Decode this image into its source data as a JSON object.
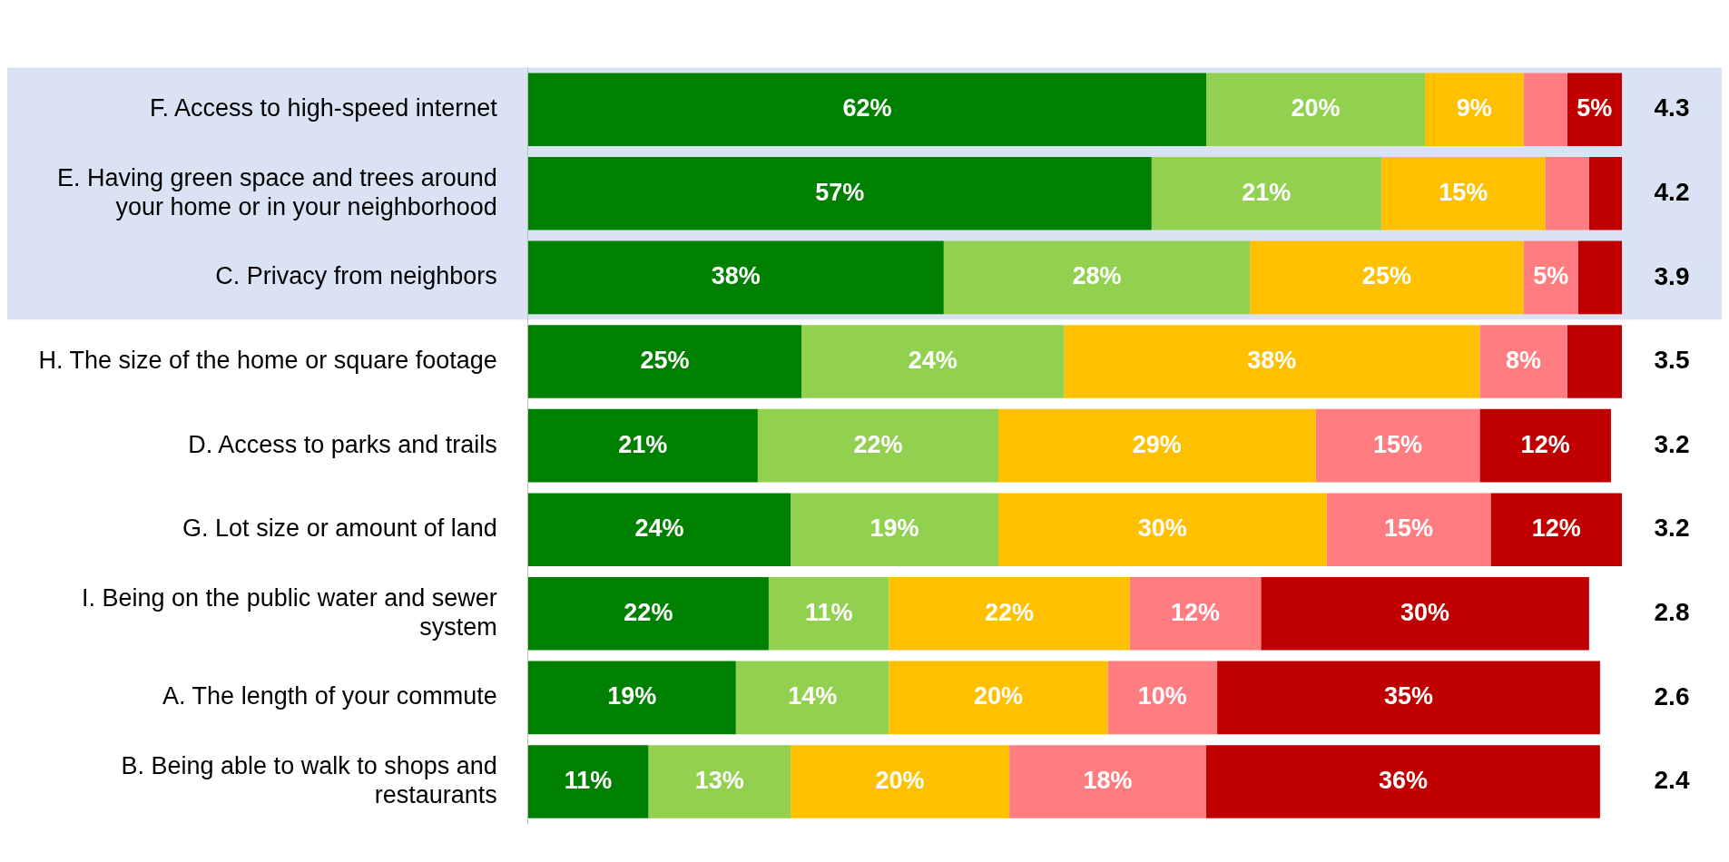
{
  "chart_data": {
    "type": "bar",
    "orientation": "horizontal",
    "stacked": true,
    "categories": [
      "F. Access to high-speed internet",
      "E. Having green space and trees around your home or in your neighborhood",
      "C. Privacy from neighbors",
      "H. The size of the home or square footage",
      "D. Access to parks and trails",
      "G. Lot size or amount of land",
      "I. Being on the public water and sewer system",
      "A. The length of your commute",
      "B. Being able to walk to shops and restaurants"
    ],
    "series": [
      {
        "color": "#008000",
        "values": [
          62,
          57,
          38,
          25,
          21,
          24,
          22,
          19,
          11
        ],
        "value_labels": [
          "62%",
          "57%",
          "38%",
          "25%",
          "21%",
          "24%",
          "22%",
          "19%",
          "11%"
        ]
      },
      {
        "color": "#92d050",
        "values": [
          20,
          21,
          28,
          24,
          22,
          19,
          11,
          14,
          13
        ],
        "value_labels": [
          "20%",
          "21%",
          "28%",
          "24%",
          "22%",
          "19%",
          "11%",
          "14%",
          "13%"
        ]
      },
      {
        "color": "#ffc000",
        "values": [
          9,
          15,
          25,
          38,
          29,
          30,
          22,
          20,
          20
        ],
        "value_labels": [
          "9%",
          "15%",
          "25%",
          "38%",
          "29%",
          "30%",
          "22%",
          "20%",
          "20%"
        ]
      },
      {
        "color": "#ff7c80",
        "values": [
          4,
          4,
          5,
          8,
          15,
          15,
          12,
          10,
          18
        ],
        "value_labels": [
          null,
          null,
          "5%",
          "8%",
          "15%",
          "15%",
          "12%",
          "10%",
          "18%"
        ]
      },
      {
        "color": "#c00000",
        "values": [
          5,
          3,
          4,
          5,
          12,
          12,
          30,
          35,
          36
        ],
        "value_labels": [
          "5%",
          null,
          null,
          null,
          "12%",
          "12%",
          "30%",
          "35%",
          "36%"
        ]
      }
    ],
    "bands": [
      {
        "axis": "y",
        "from": "F. Access to high-speed internet",
        "to": "C. Privacy from neighbors",
        "color": "#dae3f3"
      }
    ],
    "annotations": [
      "4.3",
      "4.2",
      "3.9",
      "3.5",
      "3.2",
      "3.2",
      "2.8",
      "2.6",
      "2.4"
    ],
    "legend": false
  }
}
